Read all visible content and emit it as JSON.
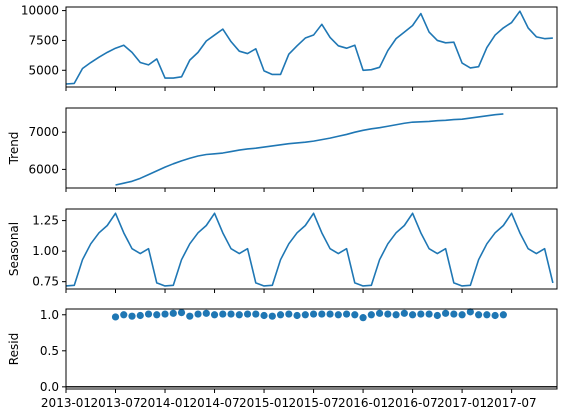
{
  "chart_data": [
    {
      "type": "line",
      "panel": "observed",
      "ylabel": "",
      "ylim": [
        3600,
        10300
      ],
      "yticks": [
        5000,
        7500,
        10000
      ],
      "xlim": [
        0,
        59.5
      ],
      "color": "#1f77b4",
      "x": [
        0,
        1,
        2,
        3,
        4,
        5,
        6,
        7,
        8,
        9,
        10,
        11,
        12,
        13,
        14,
        15,
        16,
        17,
        18,
        19,
        20,
        21,
        22,
        23,
        24,
        25,
        26,
        27,
        28,
        29,
        30,
        31,
        32,
        33,
        34,
        35,
        36,
        37,
        38,
        39,
        40,
        41,
        42,
        43,
        44,
        45,
        46,
        47,
        48,
        49,
        50,
        51,
        52,
        53,
        54,
        55,
        56,
        57,
        58,
        59
      ],
      "values": [
        3850,
        3900,
        5150,
        5650,
        6100,
        6500,
        6850,
        7100,
        6500,
        5650,
        5450,
        5950,
        4350,
        4350,
        4450,
        5850,
        6500,
        7450,
        7950,
        8450,
        7400,
        6600,
        6400,
        6800,
        4950,
        4650,
        4650,
        6350,
        7050,
        7700,
        7950,
        8850,
        7750,
        7050,
        6850,
        7100,
        5000,
        5050,
        5250,
        6650,
        7650,
        8200,
        8750,
        9750,
        8200,
        7500,
        7300,
        7350,
        5600,
        5200,
        5300,
        6900,
        7950,
        8550,
        9000,
        9950,
        8550,
        7800,
        7650,
        7700
      ]
    },
    {
      "type": "line",
      "panel": "trend",
      "ylabel": "Trend",
      "ylim": [
        5500,
        7650
      ],
      "yticks": [
        6000,
        7000
      ],
      "xlim": [
        0,
        59.5
      ],
      "color": "#1f77b4",
      "x": [
        6,
        7,
        8,
        9,
        10,
        11,
        12,
        13,
        14,
        15,
        16,
        17,
        18,
        19,
        20,
        21,
        22,
        23,
        24,
        25,
        26,
        27,
        28,
        29,
        30,
        31,
        32,
        33,
        34,
        35,
        36,
        37,
        38,
        39,
        40,
        41,
        42,
        43,
        44,
        45,
        46,
        47,
        48,
        49,
        50,
        51,
        52,
        53
      ],
      "values": [
        5580,
        5630,
        5680,
        5760,
        5860,
        5960,
        6060,
        6150,
        6230,
        6300,
        6360,
        6400,
        6420,
        6440,
        6480,
        6520,
        6550,
        6570,
        6600,
        6630,
        6660,
        6690,
        6710,
        6730,
        6760,
        6800,
        6840,
        6890,
        6940,
        7000,
        7050,
        7090,
        7120,
        7160,
        7200,
        7240,
        7270,
        7280,
        7290,
        7310,
        7320,
        7340,
        7350,
        7380,
        7410,
        7440,
        7470,
        7490
      ]
    },
    {
      "type": "line",
      "panel": "seasonal",
      "ylabel": "Seasonal",
      "ylim": [
        0.69,
        1.345
      ],
      "yticks": [
        0.75,
        1.0,
        1.25
      ],
      "xlim": [
        0,
        59.5
      ],
      "color": "#1f77b4",
      "x": [
        0,
        1,
        2,
        3,
        4,
        5,
        6,
        7,
        8,
        9,
        10,
        11,
        12,
        13,
        14,
        15,
        16,
        17,
        18,
        19,
        20,
        21,
        22,
        23,
        24,
        25,
        26,
        27,
        28,
        29,
        30,
        31,
        32,
        33,
        34,
        35,
        36,
        37,
        38,
        39,
        40,
        41,
        42,
        43,
        44,
        45,
        46,
        47,
        48,
        49,
        50,
        51,
        52,
        53,
        54,
        55,
        56,
        57,
        58,
        59
      ],
      "values": [
        0.715,
        0.72,
        0.93,
        1.06,
        1.15,
        1.21,
        1.31,
        1.15,
        1.02,
        0.98,
        1.02,
        0.74,
        0.715,
        0.72,
        0.93,
        1.06,
        1.15,
        1.21,
        1.31,
        1.15,
        1.02,
        0.98,
        1.02,
        0.74,
        0.715,
        0.72,
        0.93,
        1.06,
        1.15,
        1.21,
        1.31,
        1.15,
        1.02,
        0.98,
        1.02,
        0.74,
        0.715,
        0.72,
        0.93,
        1.06,
        1.15,
        1.21,
        1.31,
        1.15,
        1.02,
        0.98,
        1.02,
        0.74,
        0.715,
        0.72,
        0.93,
        1.06,
        1.15,
        1.21,
        1.31,
        1.15,
        1.02,
        0.98,
        1.02,
        0.74
      ]
    },
    {
      "type": "scatter",
      "panel": "resid",
      "ylabel": "Resid",
      "ylim": [
        -0.03,
        1.08
      ],
      "yticks": [
        0.0,
        0.5,
        1.0
      ],
      "baseline": 0,
      "xlim": [
        0,
        59.5
      ],
      "color": "#1f77b4",
      "x": [
        6,
        7,
        8,
        9,
        10,
        11,
        12,
        13,
        14,
        15,
        16,
        17,
        18,
        19,
        20,
        21,
        22,
        23,
        24,
        25,
        26,
        27,
        28,
        29,
        30,
        31,
        32,
        33,
        34,
        35,
        36,
        37,
        38,
        39,
        40,
        41,
        42,
        43,
        44,
        45,
        46,
        47,
        48,
        49,
        50,
        51,
        52,
        53
      ],
      "values": [
        0.97,
        1.0,
        0.98,
        0.99,
        1.01,
        1.0,
        1.01,
        1.02,
        1.03,
        0.98,
        1.01,
        1.02,
        1.0,
        1.01,
        1.01,
        1.0,
        1.01,
        1.01,
        0.99,
        0.98,
        1.0,
        1.01,
        0.99,
        1.0,
        1.01,
        1.01,
        1.01,
        1.0,
        1.01,
        1.0,
        0.96,
        1.0,
        1.02,
        1.01,
        1.0,
        1.02,
        1.0,
        1.01,
        1.01,
        0.99,
        1.02,
        1.01,
        1.0,
        1.04,
        1.0,
        1.0,
        0.99,
        1.0
      ],
      "xtick_positions": [
        0,
        6,
        12,
        18,
        24,
        30,
        36,
        42,
        48,
        54
      ],
      "xtick_labels": [
        "2013-01",
        "2013-07",
        "2014-01",
        "2014-07",
        "2015-01",
        "2015-07",
        "2016-01",
        "2016-07",
        "2017-01",
        "2017-07"
      ]
    }
  ]
}
